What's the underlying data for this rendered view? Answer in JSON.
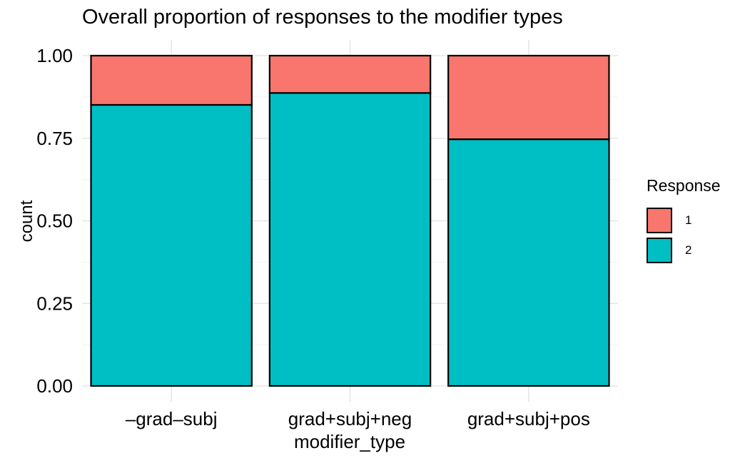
{
  "chart_data": {
    "type": "bar",
    "stacked": true,
    "title": "Overall proportion of responses to the modifier types",
    "xlabel": "modifier_type",
    "ylabel": "count",
    "categories": [
      "–grad–subj",
      "grad+subj+neg",
      "grad+subj+pos"
    ],
    "series": [
      {
        "name": "1",
        "values": [
          0.149,
          0.113,
          0.253
        ],
        "color": "#F8766D"
      },
      {
        "name": "2",
        "values": [
          0.851,
          0.887,
          0.747
        ],
        "color": "#00BFC4"
      }
    ],
    "ylim": [
      0,
      1
    ],
    "yticks": [
      "0.00",
      "0.25",
      "0.50",
      "0.75",
      "1.00"
    ],
    "legend": {
      "title": "Response",
      "position": "right"
    },
    "grid": true
  }
}
